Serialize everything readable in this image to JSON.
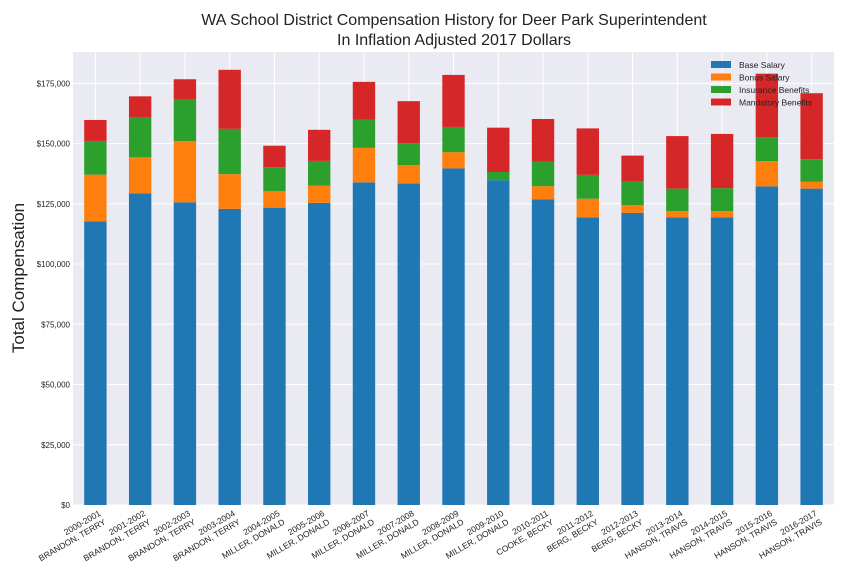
{
  "chart_data": {
    "type": "bar",
    "stacked": true,
    "title_line1": "WA School District Compensation History for Deer Park Superintendent",
    "title_line2": "In Inflation Adjusted 2017 Dollars",
    "ylabel": "Total Compensation",
    "ylim": [
      0,
      188000
    ],
    "yticks": [
      0,
      25000,
      50000,
      75000,
      100000,
      125000,
      150000,
      175000
    ],
    "ytick_labels": [
      "$0",
      "$25,000",
      "$50,000",
      "$75,000",
      "$100,000",
      "$125,000",
      "$150,000",
      "$175,000"
    ],
    "grid": true,
    "legend_position": "top-right",
    "categories": [
      [
        "2000-2001",
        "BRANDON, TERRY"
      ],
      [
        "2001-2002",
        "BRANDON, TERRY"
      ],
      [
        "2002-2003",
        "BRANDON, TERRY"
      ],
      [
        "2003-2004",
        "BRANDON, TERRY"
      ],
      [
        "2004-2005",
        "MILLER, DONALD"
      ],
      [
        "2005-2006",
        "MILLER, DONALD"
      ],
      [
        "2006-2007",
        "MILLER, DONALD"
      ],
      [
        "2007-2008",
        "MILLER, DONALD"
      ],
      [
        "2008-2009",
        "MILLER, DONALD"
      ],
      [
        "2009-2010",
        "MILLER, DONALD"
      ],
      [
        "2010-2011",
        "COOKE, BECKY"
      ],
      [
        "2011-2012",
        "BERG, BECKY"
      ],
      [
        "2012-2013",
        "BERG, BECKY"
      ],
      [
        "2013-2014",
        "HANSON, TRAVIS"
      ],
      [
        "2014-2015",
        "HANSON, TRAVIS"
      ],
      [
        "2015-2016",
        "HANSON, TRAVIS"
      ],
      [
        "2016-2017",
        "HANSON, TRAVIS"
      ]
    ],
    "series": [
      {
        "name": "Base Salary",
        "color": "#1f77b4",
        "values": [
          117700,
          129300,
          125600,
          122900,
          123400,
          125400,
          133900,
          133400,
          139700,
          134800,
          126800,
          119300,
          121200,
          119300,
          119400,
          132200,
          131300
        ]
      },
      {
        "name": "Bonus Salary",
        "color": "#ff7f0e",
        "values": [
          19400,
          15000,
          25400,
          14400,
          6800,
          7100,
          14300,
          7700,
          6700,
          0,
          5500,
          7800,
          3200,
          2700,
          2600,
          10500,
          2800
        ]
      },
      {
        "name": "Insurance Benefits",
        "color": "#2ca02c",
        "values": [
          14000,
          16400,
          17200,
          18800,
          10000,
          10300,
          11800,
          9100,
          10500,
          3400,
          10100,
          9900,
          9900,
          9300,
          9500,
          10000,
          9400
        ]
      },
      {
        "name": "Mandatory Benefits",
        "color": "#d62728",
        "values": [
          8700,
          8900,
          8500,
          24500,
          8900,
          12900,
          15600,
          17400,
          21600,
          18400,
          17800,
          19300,
          10700,
          21800,
          22500,
          26300,
          27400
        ]
      }
    ]
  }
}
